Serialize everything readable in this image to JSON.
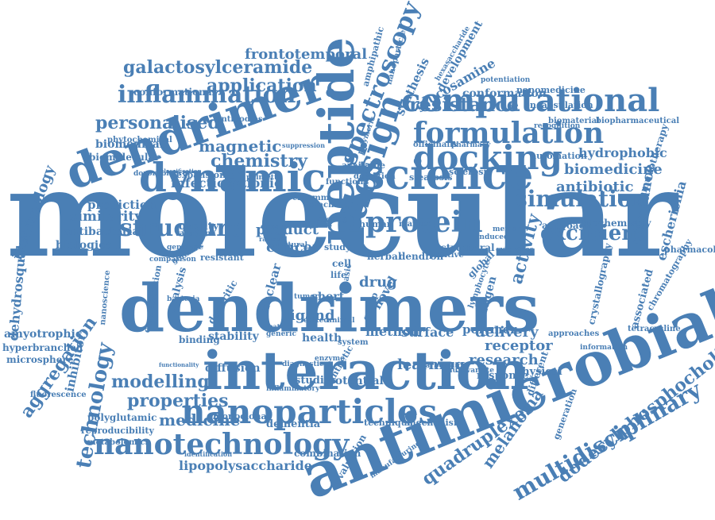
{
  "color": "#4a7fb5",
  "words": [
    {
      "text": "molecular"
    },
    {
      "text": "antimicrobial"
    },
    {
      "text": "dendrimers"
    },
    {
      "text": "interaction"
    },
    {
      "text": "peptide"
    },
    {
      "text": "dendrimer."
    },
    {
      "text": "science"
    },
    {
      "text": "dynamic"
    },
    {
      "text": "computational"
    },
    {
      "text": "nanoparticles"
    },
    {
      "text": "nanotechnology"
    },
    {
      "text": "design"
    },
    {
      "text": "docking"
    },
    {
      "text": "formulation"
    },
    {
      "text": "spectroscopy"
    },
    {
      "text": "protein"
    },
    {
      "text": "structure"
    },
    {
      "text": "inflammation"
    },
    {
      "text": "simulation"
    },
    {
      "text": "multidisciplinary"
    },
    {
      "text": "dodecylphosphocholine"
    },
    {
      "text": "excipient"
    },
    {
      "text": "resistance"
    },
    {
      "text": "galactosylceramide"
    },
    {
      "text": "application"
    },
    {
      "text": "personalised"
    },
    {
      "text": "chemistry"
    },
    {
      "text": "magnetic"
    },
    {
      "text": "quadruplexes"
    },
    {
      "text": "melanoma"
    },
    {
      "text": "technology"
    },
    {
      "text": "aggregation"
    },
    {
      "text": "immunology"
    },
    {
      "text": "dehydrosqualene"
    },
    {
      "text": "frontotemporal"
    },
    {
      "text": "modelling"
    },
    {
      "text": "properties"
    },
    {
      "text": "medicine"
    },
    {
      "text": "lipopolysaccharide"
    },
    {
      "text": "activity"
    },
    {
      "text": "resonance"
    },
    {
      "text": "escherichia"
    },
    {
      "text": "biomedicine"
    },
    {
      "text": "antibiotic"
    },
    {
      "text": "hydrophobic"
    },
    {
      "text": "delivery"
    },
    {
      "text": "receptor"
    },
    {
      "text": "research"
    },
    {
      "text": "cancer"
    },
    {
      "text": "product"
    },
    {
      "text": "ligand"
    },
    {
      "text": "drug"
    },
    {
      "text": "method"
    },
    {
      "text": "surface"
    },
    {
      "text": "potential"
    },
    {
      "text": "learning"
    },
    {
      "text": "polymer"
    },
    {
      "text": "infection"
    },
    {
      "text": "cationic"
    },
    {
      "text": "prediction"
    },
    {
      "text": "similarity"
    },
    {
      "text": "antibacterial"
    },
    {
      "text": "biological"
    },
    {
      "text": "amyotrophic"
    },
    {
      "text": "hyperbranched"
    },
    {
      "text": "microsphere"
    },
    {
      "text": "fluorescence"
    },
    {
      "text": "inhibitor"
    },
    {
      "text": "polyglutamic"
    },
    {
      "text": "reproducibility"
    },
    {
      "text": "metabolomics"
    },
    {
      "text": "diffusion"
    },
    {
      "text": "stability"
    },
    {
      "text": "binding"
    },
    {
      "text": "dementia"
    },
    {
      "text": "monoclonal"
    },
    {
      "text": "combination"
    },
    {
      "text": "identification"
    },
    {
      "text": "evaluation"
    },
    {
      "text": "manufacturing"
    },
    {
      "text": "technique"
    },
    {
      "text": "mechanism"
    },
    {
      "text": "response"
    },
    {
      "text": "physical"
    },
    {
      "text": "different"
    },
    {
      "text": "conformation"
    },
    {
      "text": "conformational"
    },
    {
      "text": "glucosamine"
    },
    {
      "text": "synthesis"
    },
    {
      "text": "development"
    },
    {
      "text": "nanomedicine"
    },
    {
      "text": "encapsulation"
    },
    {
      "text": "biomaterial"
    },
    {
      "text": "biopharmaceutical"
    },
    {
      "text": "automation"
    },
    {
      "text": "immunotherapy"
    },
    {
      "text": "biochemistry"
    },
    {
      "text": "approach"
    },
    {
      "text": "pharmacology"
    },
    {
      "text": "crystallography"
    },
    {
      "text": "chromatography"
    },
    {
      "text": "associated"
    },
    {
      "text": "tetracycline"
    },
    {
      "text": "approaches"
    },
    {
      "text": "information"
    },
    {
      "text": "generation"
    },
    {
      "text": "analysis"
    },
    {
      "text": "concentration"
    },
    {
      "text": "nanoscience"
    },
    {
      "text": "nuclear"
    },
    {
      "text": "novel"
    },
    {
      "text": "antigen"
    },
    {
      "text": "global"
    },
    {
      "text": "structural"
    },
    {
      "text": "human"
    },
    {
      "text": "marker"
    },
    {
      "text": "herbal"
    },
    {
      "text": "dendron"
    },
    {
      "text": "positive"
    },
    {
      "text": "cytokines"
    },
    {
      "text": "memory"
    },
    {
      "text": "cell"
    },
    {
      "text": "life"
    },
    {
      "text": "short"
    },
    {
      "text": "tumor"
    },
    {
      "text": "edited"
    },
    {
      "text": "animal"
    },
    {
      "text": "system"
    },
    {
      "text": "health"
    },
    {
      "text": "studies"
    },
    {
      "text": "inflammatory"
    },
    {
      "text": "complex"
    },
    {
      "text": "natural"
    },
    {
      "text": "study"
    },
    {
      "text": "rational"
    },
    {
      "text": "damage"
    },
    {
      "text": "quality"
    },
    {
      "text": "valeriana"
    },
    {
      "text": "glutamic"
    },
    {
      "text": "resistant"
    },
    {
      "text": "comparison"
    },
    {
      "text": "dendritic"
    },
    {
      "text": "expansion"
    },
    {
      "text": "doxorubicin"
    },
    {
      "text": "palmetto"
    },
    {
      "text": "biomedical"
    },
    {
      "text": "biomolecular"
    },
    {
      "text": "phytochemical"
    },
    {
      "text": "antibodies"
    },
    {
      "text": "suppression"
    },
    {
      "text": "officinalis"
    },
    {
      "text": "pharmacy"
    },
    {
      "text": "available"
    },
    {
      "text": "detection"
    },
    {
      "text": "function"
    },
    {
      "text": "steatosis"
    },
    {
      "text": "sclerosis"
    },
    {
      "text": "amphipathic"
    },
    {
      "text": "nanoparticle"
    },
    {
      "text": "hexasaccharide"
    },
    {
      "text": "potentiation"
    },
    {
      "text": "recognition"
    },
    {
      "text": "charmm"
    },
    {
      "text": "machine"
    },
    {
      "text": "genotype"
    },
    {
      "text": "bacteria"
    },
    {
      "text": "enzyme"
    },
    {
      "text": "group"
    },
    {
      "text": "synthetic"
    },
    {
      "text": "multivariate"
    },
    {
      "text": "carboxylic"
    },
    {
      "text": "feature"
    },
    {
      "text": "generic"
    },
    {
      "text": "model"
    },
    {
      "text": "lymphocyte"
    },
    {
      "text": "diagnostic"
    },
    {
      "text": "functionality"
    },
    {
      "text": "classification"
    },
    {
      "text": "scoring"
    },
    {
      "text": "polymeric"
    },
    {
      "text": "induced"
    },
    {
      "text": "basic"
    }
  ]
}
